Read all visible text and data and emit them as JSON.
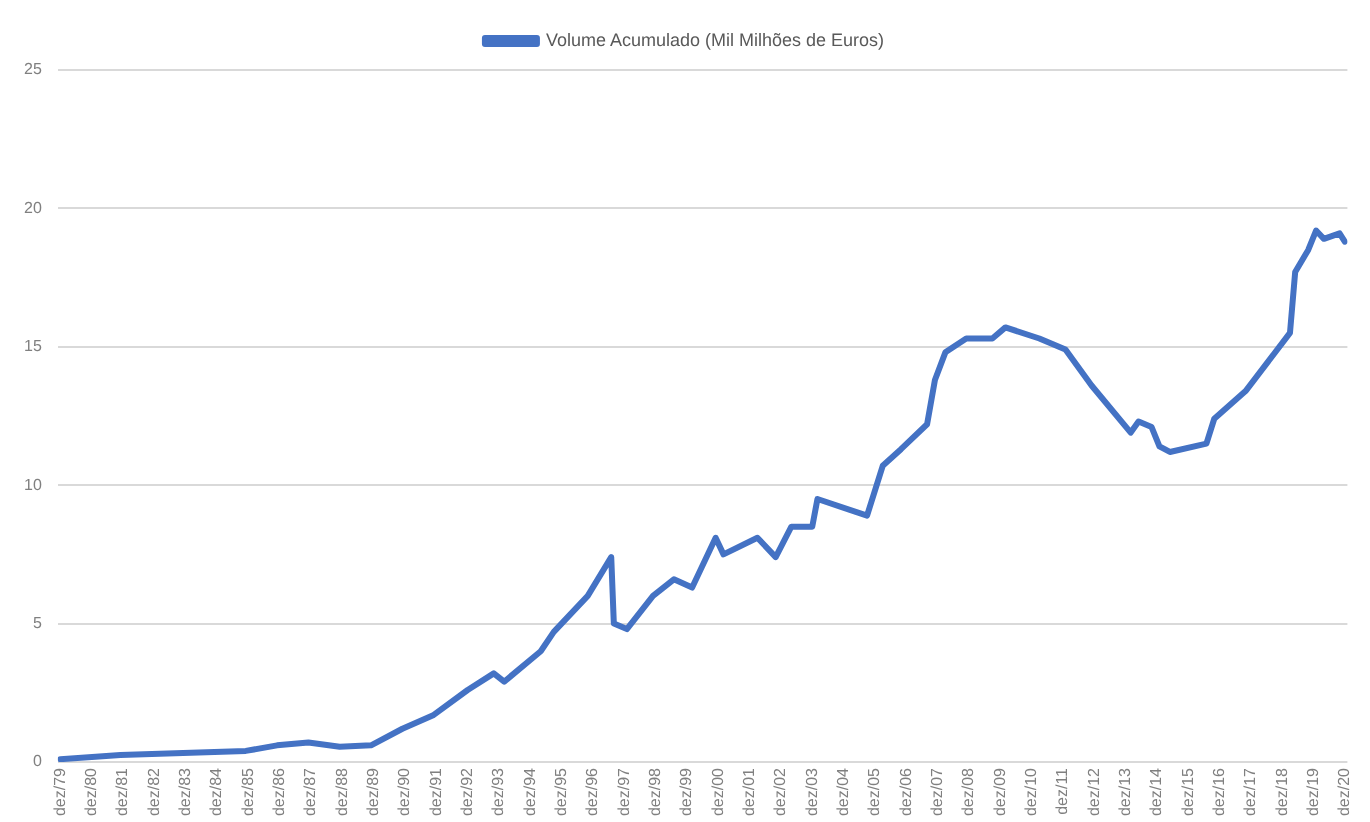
{
  "chart_data": {
    "type": "line",
    "legend": "top",
    "grid": "y",
    "marker": "none",
    "line_style": "solid",
    "xlim": [
      "1979-11",
      "2021-01"
    ],
    "xticks": [
      {
        "value": "1979-12",
        "label": "dez/79"
      },
      {
        "value": "1980-12",
        "label": "dez/80"
      },
      {
        "value": "1981-12",
        "label": "dez/81"
      },
      {
        "value": "1982-12",
        "label": "dez/82"
      },
      {
        "value": "1983-12",
        "label": "dez/83"
      },
      {
        "value": "1984-12",
        "label": "dez/84"
      },
      {
        "value": "1985-12",
        "label": "dez/85"
      },
      {
        "value": "1986-12",
        "label": "dez/86"
      },
      {
        "value": "1987-12",
        "label": "dez/87"
      },
      {
        "value": "1988-12",
        "label": "dez/88"
      },
      {
        "value": "1989-12",
        "label": "dez/89"
      },
      {
        "value": "1990-12",
        "label": "dez/90"
      },
      {
        "value": "1991-12",
        "label": "dez/91"
      },
      {
        "value": "1992-12",
        "label": "dez/92"
      },
      {
        "value": "1993-12",
        "label": "dez/93"
      },
      {
        "value": "1994-12",
        "label": "dez/94"
      },
      {
        "value": "1995-12",
        "label": "dez/95"
      },
      {
        "value": "1996-12",
        "label": "dez/96"
      },
      {
        "value": "1997-12",
        "label": "dez/97"
      },
      {
        "value": "1998-12",
        "label": "dez/98"
      },
      {
        "value": "1999-12",
        "label": "dez/99"
      },
      {
        "value": "2000-12",
        "label": "dez/00"
      },
      {
        "value": "2001-12",
        "label": "dez/01"
      },
      {
        "value": "2002-12",
        "label": "dez/02"
      },
      {
        "value": "2003-12",
        "label": "dez/03"
      },
      {
        "value": "2004-12",
        "label": "dez/04"
      },
      {
        "value": "2005-12",
        "label": "dez/05"
      },
      {
        "value": "2006-12",
        "label": "dez/06"
      },
      {
        "value": "2007-12",
        "label": "dez/07"
      },
      {
        "value": "2008-12",
        "label": "dez/08"
      },
      {
        "value": "2009-12",
        "label": "dez/09"
      },
      {
        "value": "2010-12",
        "label": "dez/10"
      },
      {
        "value": "2011-12",
        "label": "dez/11"
      },
      {
        "value": "2012-12",
        "label": "dez/12"
      },
      {
        "value": "2013-12",
        "label": "dez/13"
      },
      {
        "value": "2014-12",
        "label": "dez/14"
      },
      {
        "value": "2015-12",
        "label": "dez/15"
      },
      {
        "value": "2016-12",
        "label": "dez/16"
      },
      {
        "value": "2017-12",
        "label": "dez/17"
      },
      {
        "value": "2018-12",
        "label": "dez/18"
      },
      {
        "value": "2019-12",
        "label": "dez/19"
      },
      {
        "value": "2020-12",
        "label": "dez/20"
      }
    ],
    "ylim": [
      0,
      25
    ],
    "yticks": [
      0,
      5,
      10,
      15,
      20,
      25
    ],
    "x": [
      "1979-12",
      "1981-11",
      "1985-11",
      "1986-11",
      "1987-11",
      "1988-11",
      "1989-11",
      "1990-11",
      "1991-11",
      "1992-12",
      "1993-10",
      "1994-02",
      "1995-04",
      "1995-09",
      "1996-10",
      "1997-07",
      "1997-08",
      "1998-01",
      "1998-11",
      "1999-07",
      "2000-02",
      "2000-11",
      "2001-02",
      "2002-03",
      "2002-10",
      "2003-04",
      "2003-12",
      "2004-02",
      "2005-09",
      "2006-03",
      "2006-10",
      "2007-08",
      "2007-11",
      "2008-03",
      "2008-11",
      "2009-09",
      "2010-02",
      "2011-03",
      "2012-01",
      "2012-11",
      "2014-02",
      "2014-05",
      "2014-10",
      "2015-01",
      "2015-05",
      "2016-07",
      "2016-10",
      "2017-10",
      "2019-03",
      "2019-05",
      "2019-10",
      "2020-01",
      "2020-04",
      "2020-10",
      "2020-12"
    ],
    "series": [
      {
        "name": "Volume Acumulado (Mil Milhões de Euros)",
        "color": "#4472c4",
        "values": [
          0.1,
          0.25,
          0.4,
          0.6,
          0.7,
          0.55,
          0.6,
          1.2,
          1.7,
          2.6,
          3.2,
          2.9,
          4.0,
          4.7,
          6.0,
          7.4,
          5.0,
          4.8,
          6.0,
          6.6,
          6.3,
          8.1,
          7.5,
          8.1,
          7.4,
          8.5,
          8.5,
          9.5,
          8.9,
          10.7,
          11.3,
          12.2,
          13.8,
          14.8,
          15.3,
          15.3,
          15.7,
          15.3,
          14.9,
          13.6,
          11.9,
          12.3,
          12.1,
          11.4,
          11.2,
          11.5,
          12.4,
          13.4,
          15.5,
          17.7,
          18.5,
          19.2,
          18.9,
          19.1,
          18.8
        ]
      }
    ]
  }
}
